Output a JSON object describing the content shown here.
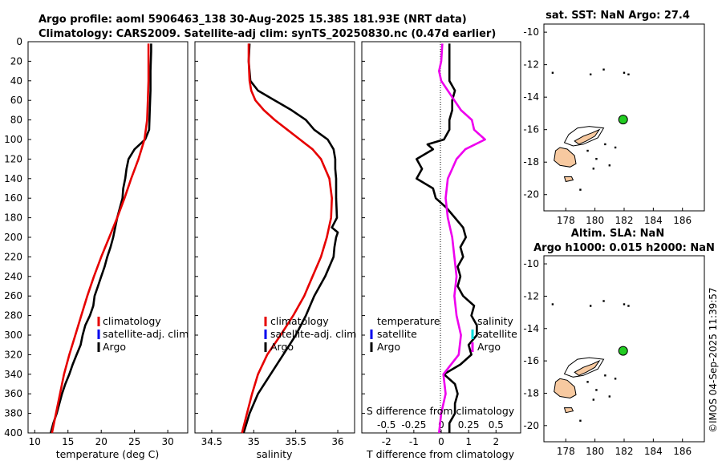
{
  "titles": {
    "line1": "Argo profile: aoml 5906463_138 30-Aug-2025 15.38S 181.93E (NRT data)",
    "line2": "Climatology: CARS2009. Satellite-adj clim: synTS_20250830.nc (0.47d earlier)",
    "map1": "sat. SST: NaN Argo: 27.4",
    "map2_line1": "Altim. SLA: NaN",
    "map2_line2": "Argo h1000: 0.015 h2000: NaN"
  },
  "credit": "©IMOS 04-Sep-2025 11:39:57",
  "colors": {
    "climatology": "#e60000",
    "satellite": "#0000ee",
    "argo": "#000000",
    "sal_diff": "#ee00ee",
    "sat_cyan": "#00dddd",
    "land": "#f7c9a0"
  },
  "legend": {
    "t_clim": "climatology",
    "t_sat": "satellite-adj. clim",
    "t_argo": "Argo",
    "s_clim": "climatology",
    "s_sat": "satellite-adj. clim",
    "s_argo": "Argo",
    "d_temp_head": "temperature",
    "d_sal_head": "salinity",
    "d_t_sat": "satellite",
    "d_t_argo": "Argo",
    "d_s_sat": "satellite",
    "d_s_argo": "Argo"
  },
  "chart_data": [
    {
      "type": "line",
      "id": "temperature",
      "xlabel": "temperature (deg C)",
      "ylabel": "",
      "xlim": [
        9,
        33
      ],
      "ylim": [
        400,
        0
      ],
      "xticks": [
        10,
        15,
        20,
        25,
        30
      ],
      "yticks": [
        0,
        20,
        40,
        60,
        80,
        100,
        120,
        140,
        160,
        180,
        200,
        220,
        240,
        260,
        280,
        300,
        320,
        340,
        360,
        380,
        400
      ],
      "series": [
        {
          "name": "climatology",
          "color": "#e60000",
          "depth": [
            2,
            20,
            40,
            60,
            80,
            100,
            120,
            140,
            160,
            180,
            200,
            220,
            240,
            260,
            280,
            300,
            320,
            340,
            360,
            380,
            400
          ],
          "values": [
            27.1,
            27.1,
            27.1,
            27.0,
            26.9,
            26.5,
            25.6,
            24.5,
            23.5,
            22.4,
            21.2,
            20.0,
            18.9,
            17.9,
            17.0,
            16.1,
            15.2,
            14.4,
            13.8,
            13.2,
            12.6
          ]
        },
        {
          "name": "Argo",
          "color": "#000000",
          "depth": [
            2,
            10,
            30,
            50,
            70,
            90,
            100,
            105,
            110,
            120,
            130,
            140,
            150,
            160,
            170,
            180,
            190,
            200,
            210,
            220,
            230,
            240,
            250,
            260,
            270,
            280,
            290,
            300,
            310,
            320,
            330,
            340,
            350,
            360,
            370,
            380,
            390,
            400
          ],
          "values": [
            27.5,
            27.5,
            27.4,
            27.4,
            27.3,
            27.2,
            26.6,
            25.8,
            25.0,
            24.1,
            23.8,
            23.6,
            23.3,
            23.2,
            22.8,
            22.4,
            22.1,
            21.8,
            21.4,
            20.9,
            20.5,
            20.0,
            19.5,
            19.0,
            18.8,
            18.3,
            17.6,
            17.2,
            16.9,
            16.3,
            15.7,
            15.2,
            14.6,
            14.1,
            13.7,
            13.3,
            12.8,
            12.4
          ]
        }
      ]
    },
    {
      "type": "line",
      "id": "salinity",
      "xlabel": "salinity",
      "ylabel": "",
      "xlim": [
        34.3,
        36.2
      ],
      "ylim": [
        400,
        0
      ],
      "xticks": [
        34.5,
        35,
        35.5,
        36
      ],
      "series": [
        {
          "name": "climatology",
          "color": "#e60000",
          "depth": [
            2,
            20,
            40,
            50,
            60,
            70,
            80,
            90,
            100,
            110,
            120,
            140,
            160,
            180,
            200,
            220,
            240,
            260,
            280,
            300,
            320,
            340,
            360,
            380,
            400
          ],
          "values": [
            34.94,
            34.94,
            34.95,
            34.97,
            35.02,
            35.12,
            35.25,
            35.4,
            35.55,
            35.7,
            35.8,
            35.9,
            35.93,
            35.92,
            35.87,
            35.8,
            35.7,
            35.6,
            35.47,
            35.32,
            35.16,
            35.05,
            34.98,
            34.92,
            34.86
          ]
        },
        {
          "name": "Argo",
          "color": "#000000",
          "depth": [
            2,
            20,
            40,
            50,
            60,
            70,
            80,
            90,
            95,
            100,
            110,
            120,
            130,
            140,
            160,
            180,
            190,
            195,
            200,
            210,
            220,
            240,
            260,
            280,
            300,
            320,
            340,
            360,
            380,
            400
          ],
          "values": [
            34.95,
            34.94,
            34.96,
            35.05,
            35.25,
            35.45,
            35.62,
            35.72,
            35.8,
            35.88,
            35.95,
            35.97,
            35.97,
            35.98,
            35.98,
            35.99,
            35.93,
            36.0,
            35.98,
            35.96,
            35.95,
            35.85,
            35.72,
            35.62,
            35.5,
            35.35,
            35.2,
            35.05,
            34.95,
            34.88
          ]
        }
      ]
    },
    {
      "type": "line",
      "id": "differences",
      "xlabel": "T difference from climatology",
      "x2label": "S difference from climatology",
      "xlim": [
        -2.9,
        2.9
      ],
      "ylim": [
        400,
        0
      ],
      "xticks": [
        -2,
        -1,
        0,
        1,
        2
      ],
      "x2ticks": [
        -0.5,
        -0.25,
        0,
        0.25,
        0.5
      ],
      "x2lim": [
        -0.725,
        0.725
      ],
      "x2ticklabels": [
        "-0.5",
        "-0.25",
        "0",
        "0.25",
        "0.5"
      ],
      "series": [
        {
          "name": "T difference Argo",
          "color": "#000000",
          "axis": "T",
          "depth": [
            2,
            20,
            40,
            50,
            60,
            70,
            80,
            90,
            100,
            105,
            110,
            120,
            130,
            140,
            150,
            160,
            170,
            180,
            190,
            200,
            210,
            220,
            230,
            240,
            250,
            260,
            270,
            280,
            290,
            300,
            310,
            320,
            330,
            340,
            350,
            360,
            370,
            380,
            390,
            400
          ],
          "values": [
            0.3,
            0.3,
            0.3,
            0.5,
            0.4,
            0.4,
            0.3,
            0.3,
            0.1,
            -0.5,
            -0.3,
            -0.9,
            -0.7,
            -0.9,
            -0.3,
            -0.2,
            0.2,
            0.5,
            0.8,
            0.9,
            0.7,
            0.8,
            0.6,
            0.7,
            0.6,
            0.8,
            1.2,
            1.1,
            1.3,
            1.3,
            1.0,
            1.1,
            0.7,
            0.1,
            0.5,
            0.6,
            0.5,
            0.5,
            0.3,
            0.3
          ]
        },
        {
          "name": "S difference Argo",
          "color": "#ee00ee",
          "axis": "S",
          "depth": [
            2,
            20,
            30,
            40,
            50,
            60,
            70,
            80,
            90,
            100,
            110,
            120,
            130,
            140,
            160,
            180,
            200,
            220,
            240,
            260,
            280,
            300,
            320,
            340,
            360,
            380,
            400
          ],
          "values": [
            0.01,
            0.0,
            -0.02,
            0.0,
            0.06,
            0.12,
            0.18,
            0.28,
            0.3,
            0.4,
            0.22,
            0.14,
            0.1,
            0.06,
            0.04,
            0.06,
            0.1,
            0.12,
            0.14,
            0.12,
            0.14,
            0.18,
            0.16,
            0.02,
            0.04,
            0.0,
            -0.02
          ]
        }
      ]
    },
    {
      "type": "scatter",
      "id": "map-sst",
      "title": "sat. SST: NaN Argo: 27.4",
      "xlim": [
        176.5,
        187.5
      ],
      "ylim": [
        -21,
        -9.5
      ],
      "xticks": [
        178,
        180,
        182,
        184,
        186
      ],
      "yticks": [
        -10,
        -12,
        -14,
        -16,
        -18,
        -20
      ],
      "argo_position": {
        "lon": 181.93,
        "lat": -15.38
      }
    },
    {
      "type": "scatter",
      "id": "map-sla",
      "title": "Altim. SLA: NaN / Argo h1000: 0.015 h2000: NaN",
      "xlim": [
        176.5,
        187.5
      ],
      "ylim": [
        -21,
        -9.5
      ],
      "xticks": [
        178,
        180,
        182,
        184,
        186
      ],
      "yticks": [
        -10,
        -12,
        -14,
        -16,
        -18,
        -20
      ],
      "argo_position": {
        "lon": 181.93,
        "lat": -15.38
      }
    }
  ]
}
